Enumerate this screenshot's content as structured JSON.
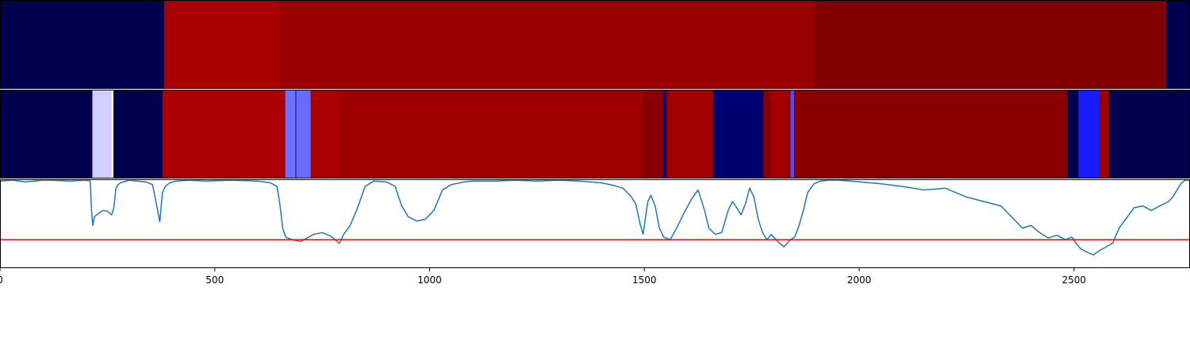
{
  "figure": {
    "colors": {
      "background": "#ffffff",
      "axes_edge": "#000000",
      "signal_line": "#1f77b4",
      "threshold_line": "#ff0000"
    }
  },
  "chart_data": [
    {
      "type": "heatmap",
      "panel": "top-strip",
      "xlim": [
        0,
        2770
      ],
      "segments": [
        {
          "x0": 0,
          "x1": 382,
          "color": "#00004c"
        },
        {
          "x0": 382,
          "x1": 650,
          "color": "#a80000"
        },
        {
          "x0": 650,
          "x1": 1897,
          "color": "#990000"
        },
        {
          "x0": 1897,
          "x1": 2715,
          "color": "#800000"
        },
        {
          "x0": 2715,
          "x1": 2770,
          "color": "#00004c"
        }
      ]
    },
    {
      "type": "heatmap",
      "panel": "middle-strip",
      "xlim": [
        0,
        2770
      ],
      "segments": [
        {
          "x0": 0,
          "x1": 215,
          "color": "#00004c"
        },
        {
          "x0": 215,
          "x1": 260,
          "color": "#d0d0ff"
        },
        {
          "x0": 260,
          "x1": 264,
          "color": "#ffffff"
        },
        {
          "x0": 264,
          "x1": 266,
          "color": "#00004c"
        },
        {
          "x0": 266,
          "x1": 378,
          "color": "#00004c"
        },
        {
          "x0": 378,
          "x1": 664,
          "color": "#aa0000"
        },
        {
          "x0": 664,
          "x1": 687,
          "color": "#7070ff"
        },
        {
          "x0": 687,
          "x1": 690,
          "color": "#3030cc"
        },
        {
          "x0": 690,
          "x1": 723,
          "color": "#6a6aff"
        },
        {
          "x0": 723,
          "x1": 787,
          "color": "#aa0000"
        },
        {
          "x0": 787,
          "x1": 1495,
          "color": "#9e0000"
        },
        {
          "x0": 1495,
          "x1": 1544,
          "color": "#880000"
        },
        {
          "x0": 1544,
          "x1": 1550,
          "color": "#000080"
        },
        {
          "x0": 1550,
          "x1": 1555,
          "color": "#880000"
        },
        {
          "x0": 1555,
          "x1": 1660,
          "color": "#a00000"
        },
        {
          "x0": 1660,
          "x1": 1777,
          "color": "#000070"
        },
        {
          "x0": 1777,
          "x1": 1795,
          "color": "#880000"
        },
        {
          "x0": 1795,
          "x1": 1835,
          "color": "#a00000"
        },
        {
          "x0": 1835,
          "x1": 1840,
          "color": "#880000"
        },
        {
          "x0": 1840,
          "x1": 1848,
          "color": "#5050ff"
        },
        {
          "x0": 1848,
          "x1": 1860,
          "color": "#880000"
        },
        {
          "x0": 1860,
          "x1": 2485,
          "color": "#8a0000"
        },
        {
          "x0": 2485,
          "x1": 2510,
          "color": "#00004c"
        },
        {
          "x0": 2510,
          "x1": 2560,
          "color": "#1a1aff"
        },
        {
          "x0": 2560,
          "x1": 2582,
          "color": "#990000"
        },
        {
          "x0": 2582,
          "x1": 2770,
          "color": "#00004c"
        }
      ]
    },
    {
      "type": "line",
      "panel": "bottom-signal",
      "xlim": [
        0,
        2770
      ],
      "ylim": [
        -1.0,
        0.0
      ],
      "threshold": -0.68,
      "xticks": [
        0,
        500,
        1000,
        1500,
        2000,
        2500
      ],
      "xtick_labels": [
        "0",
        "500",
        "1000",
        "1500",
        "2000",
        "2500"
      ],
      "series": [
        {
          "x": [
            0,
            30,
            60,
            100,
            120,
            160,
            200,
            210,
            213,
            216,
            220,
            230,
            240,
            250,
            260,
            265,
            270,
            275,
            280,
            300,
            320,
            340,
            355,
            365,
            372,
            378,
            385,
            395,
            410,
            440,
            480,
            540,
            600,
            630,
            645,
            652,
            658,
            665,
            680,
            700,
            715,
            730,
            750,
            770,
            780,
            790,
            800,
            815,
            830,
            850,
            870,
            900,
            920,
            935,
            950,
            970,
            990,
            1010,
            1030,
            1050,
            1080,
            1100,
            1150,
            1200,
            1250,
            1300,
            1350,
            1400,
            1430,
            1450,
            1470,
            1480,
            1490,
            1497,
            1502,
            1508,
            1515,
            1525,
            1535,
            1545,
            1560,
            1575,
            1590,
            1610,
            1625,
            1640,
            1650,
            1665,
            1680,
            1695,
            1705,
            1715,
            1725,
            1735,
            1745,
            1755,
            1765,
            1775,
            1785,
            1795,
            1810,
            1825,
            1840,
            1850,
            1860,
            1870,
            1880,
            1895,
            1910,
            1930,
            1950,
            1980,
            2050,
            2100,
            2150,
            2200,
            2250,
            2290,
            2330,
            2360,
            2380,
            2400,
            2420,
            2440,
            2460,
            2480,
            2495,
            2505,
            2515,
            2530,
            2545,
            2560,
            2575,
            2590,
            2605,
            2620,
            2640,
            2660,
            2680,
            2700,
            2720,
            2730,
            2740,
            2750,
            2760,
            2770
          ],
          "y": [
            -0.02,
            -0.01,
            -0.03,
            -0.01,
            -0.01,
            -0.02,
            -0.01,
            -0.02,
            -0.35,
            -0.52,
            -0.42,
            -0.38,
            -0.35,
            -0.36,
            -0.4,
            -0.32,
            -0.1,
            -0.06,
            -0.04,
            -0.01,
            -0.02,
            -0.03,
            -0.06,
            -0.3,
            -0.48,
            -0.15,
            -0.08,
            -0.04,
            -0.02,
            -0.01,
            -0.02,
            -0.01,
            -0.02,
            -0.04,
            -0.08,
            -0.3,
            -0.55,
            -0.65,
            -0.68,
            -0.7,
            -0.66,
            -0.62,
            -0.6,
            -0.64,
            -0.68,
            -0.72,
            -0.62,
            -0.52,
            -0.35,
            -0.08,
            -0.02,
            -0.03,
            -0.08,
            -0.3,
            -0.42,
            -0.47,
            -0.45,
            -0.35,
            -0.12,
            -0.06,
            -0.03,
            -0.02,
            -0.02,
            -0.01,
            -0.02,
            -0.01,
            -0.02,
            -0.04,
            -0.07,
            -0.1,
            -0.2,
            -0.28,
            -0.5,
            -0.62,
            -0.45,
            -0.25,
            -0.18,
            -0.3,
            -0.55,
            -0.65,
            -0.68,
            -0.55,
            -0.4,
            -0.22,
            -0.12,
            -0.35,
            -0.55,
            -0.62,
            -0.6,
            -0.35,
            -0.25,
            -0.32,
            -0.4,
            -0.28,
            -0.1,
            -0.2,
            -0.45,
            -0.6,
            -0.68,
            -0.62,
            -0.7,
            -0.76,
            -0.68,
            -0.65,
            -0.52,
            -0.35,
            -0.15,
            -0.05,
            -0.02,
            -0.01,
            -0.01,
            -0.02,
            -0.05,
            -0.08,
            -0.12,
            -0.1,
            -0.2,
            -0.25,
            -0.3,
            -0.45,
            -0.55,
            -0.52,
            -0.6,
            -0.66,
            -0.63,
            -0.68,
            -0.65,
            -0.72,
            -0.78,
            -0.82,
            -0.85,
            -0.8,
            -0.76,
            -0.72,
            -0.55,
            -0.45,
            -0.32,
            -0.3,
            -0.35,
            -0.3,
            -0.25,
            -0.2,
            -0.12,
            -0.04,
            -0.01,
            -0.01
          ]
        }
      ]
    }
  ]
}
